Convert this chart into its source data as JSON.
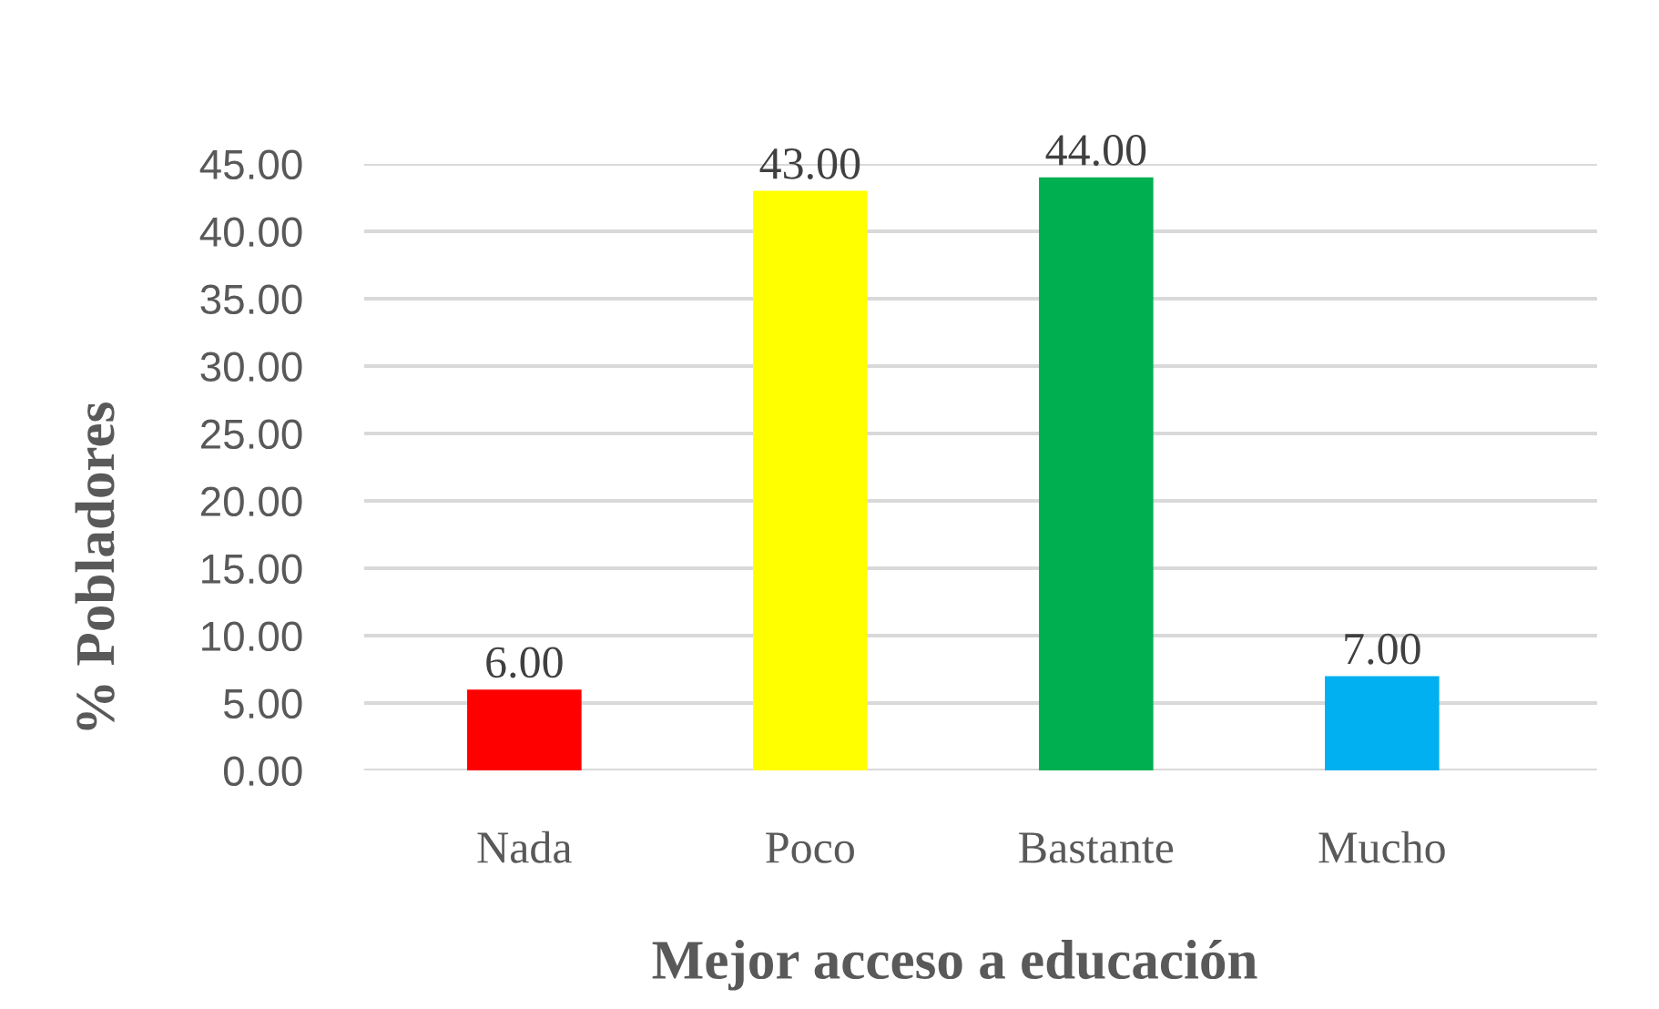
{
  "chart_data": {
    "type": "bar",
    "categories": [
      "Nada",
      "Poco",
      "Bastante",
      "Mucho"
    ],
    "values": [
      6,
      43,
      44,
      7
    ],
    "colors": [
      "#ff0000",
      "#ffff00",
      "#00b050",
      "#00b0f0"
    ],
    "value_labels": [
      "6.00",
      "43.00",
      "44.00",
      "7.00"
    ],
    "xlabel": "Mejor acceso a educación",
    "ylabel": "% Pobladores",
    "ylim": [
      0,
      45
    ],
    "yticks": [
      {
        "value": 0,
        "label": "0.00"
      },
      {
        "value": 5,
        "label": "5.00"
      },
      {
        "value": 10,
        "label": "10.00"
      },
      {
        "value": 15,
        "label": "15.00"
      },
      {
        "value": 20,
        "label": "20.00"
      },
      {
        "value": 25,
        "label": "25.00"
      },
      {
        "value": 30,
        "label": "30.00"
      },
      {
        "value": 35,
        "label": "35.00"
      },
      {
        "value": 40,
        "label": "40.00"
      },
      {
        "value": 45,
        "label": "45.00"
      }
    ],
    "grid": "y"
  }
}
